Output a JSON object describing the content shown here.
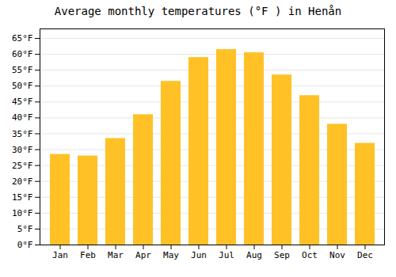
{
  "chart_data": {
    "type": "bar",
    "title": "Average monthly temperatures (°F ) in Henån",
    "categories": [
      "Jan",
      "Feb",
      "Mar",
      "Apr",
      "May",
      "Jun",
      "Jul",
      "Aug",
      "Sep",
      "Oct",
      "Nov",
      "Dec"
    ],
    "values": [
      28.5,
      28.0,
      33.5,
      41.0,
      51.5,
      59.0,
      61.5,
      60.5,
      53.5,
      47.0,
      38.0,
      32.0
    ],
    "color": "#FFC125",
    "ylim": [
      0,
      68
    ],
    "yticks": [
      {
        "value": 0,
        "label": "0°F"
      },
      {
        "value": 5,
        "label": "5°F"
      },
      {
        "value": 10,
        "label": "10°F"
      },
      {
        "value": 15,
        "label": "15°F"
      },
      {
        "value": 20,
        "label": "20°F"
      },
      {
        "value": 25,
        "label": "25°F"
      },
      {
        "value": 30,
        "label": "30°F"
      },
      {
        "value": 35,
        "label": "35°F"
      },
      {
        "value": 40,
        "label": "40°F"
      },
      {
        "value": 45,
        "label": "45°F"
      },
      {
        "value": 50,
        "label": "50°F"
      },
      {
        "value": 55,
        "label": "55°F"
      },
      {
        "value": 60,
        "label": "60°F"
      },
      {
        "value": 65,
        "label": "65°F"
      }
    ],
    "grid": true
  }
}
